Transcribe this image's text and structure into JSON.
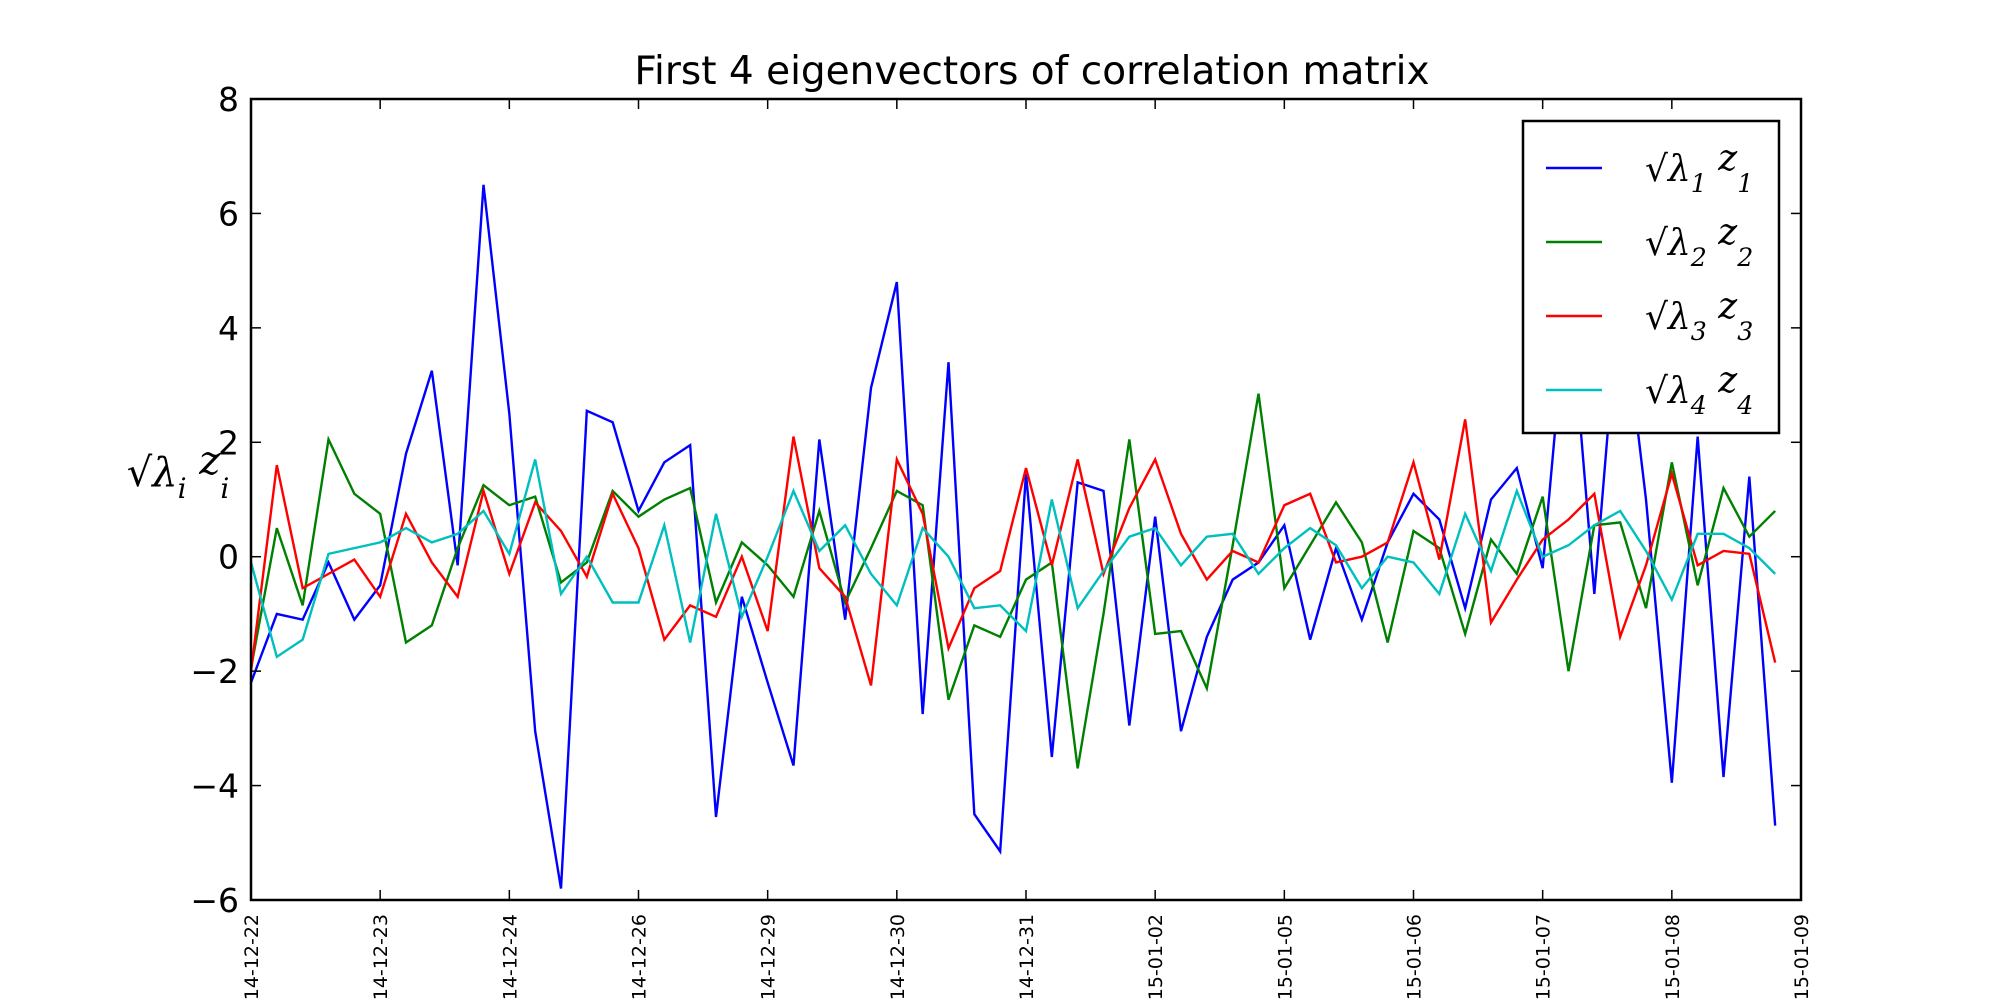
{
  "chart_data": {
    "type": "line",
    "title": "First 4 eigenvectors of correlation matrix",
    "xlabel": "",
    "ylabel": "√λi zi",
    "ylim": [
      -6,
      8
    ],
    "yticks": [
      -6,
      -4,
      -2,
      0,
      2,
      4,
      6,
      8
    ],
    "ytick_labels": [
      "−6",
      "−4",
      "−2",
      "0",
      "2",
      "4",
      "6",
      "8"
    ],
    "xtick_labels": [
      "2014-12-22",
      "2014-12-23",
      "2014-12-24",
      "2014-12-26",
      "2014-12-29",
      "2014-12-30",
      "2014-12-31",
      "2015-01-02",
      "2015-01-05",
      "2015-01-06",
      "2015-01-07",
      "2015-01-08",
      "2015-01-09"
    ],
    "points_per_tick": 5,
    "grid": false,
    "legend_position": "top-right",
    "series": [
      {
        "name": "√λ1 z1",
        "color": "#0000ff",
        "values": [
          -2.2,
          -1.0,
          -1.1,
          -0.1,
          -1.1,
          -0.5,
          1.8,
          3.25,
          -0.15,
          6.5,
          2.5,
          -3.05,
          -5.8,
          2.55,
          2.35,
          0.8,
          1.65,
          1.95,
          -4.55,
          -0.7,
          -2.2,
          -3.65,
          2.05,
          -1.1,
          2.95,
          4.8,
          -2.75,
          3.4,
          -4.5,
          -5.15,
          1.45,
          -3.5,
          1.3,
          1.15,
          -2.95,
          0.7,
          -3.05,
          -1.4,
          -0.4,
          -0.1,
          0.55,
          -1.45,
          0.15,
          -1.1,
          0.25,
          1.1,
          0.65,
          -0.9,
          1.0,
          1.55,
          -0.2,
          4.8,
          -0.65,
          4.8,
          1.0,
          -3.95,
          2.1,
          -3.85,
          1.4,
          -4.7
        ]
      },
      {
        "name": "√λ2 z2",
        "color": "#008000",
        "values": [
          -1.95,
          0.5,
          -0.85,
          2.05,
          1.1,
          0.75,
          -1.5,
          -1.2,
          0.15,
          1.25,
          0.9,
          1.05,
          -0.45,
          -0.1,
          1.15,
          0.7,
          1.0,
          1.2,
          -0.8,
          0.25,
          -0.15,
          -0.7,
          0.8,
          -0.8,
          0.15,
          1.15,
          0.9,
          -2.5,
          -1.2,
          -1.4,
          -0.4,
          -0.1,
          -3.7,
          -1.0,
          2.05,
          -1.35,
          -1.3,
          -2.3,
          0.2,
          2.85,
          -0.55,
          0.2,
          0.95,
          0.25,
          -1.5,
          0.45,
          0.15,
          -1.35,
          0.3,
          -0.3,
          1.05,
          -2.0,
          0.55,
          0.6,
          -0.9,
          1.65,
          -0.5,
          1.2,
          0.35,
          0.8
        ]
      },
      {
        "name": "√λ3 z3",
        "color": "#ff0000",
        "values": [
          -2.0,
          1.6,
          -0.55,
          -0.3,
          -0.05,
          -0.7,
          0.75,
          -0.1,
          -0.7,
          1.15,
          -0.3,
          0.95,
          0.45,
          -0.35,
          1.1,
          0.15,
          -1.45,
          -0.85,
          -1.05,
          0.0,
          -1.3,
          2.1,
          -0.2,
          -0.7,
          -2.25,
          1.7,
          0.75,
          -1.6,
          -0.55,
          -0.25,
          1.55,
          -0.15,
          1.7,
          -0.3,
          0.85,
          1.7,
          0.4,
          -0.4,
          0.1,
          -0.1,
          0.9,
          1.1,
          -0.1,
          0.0,
          0.25,
          1.65,
          -0.05,
          2.4,
          -1.15,
          -0.4,
          0.3,
          0.65,
          1.1,
          -1.4,
          -0.15,
          1.45,
          -0.15,
          0.1,
          0.05,
          -1.85
        ]
      },
      {
        "name": "√λ4 z4",
        "color": "#00bfbf",
        "values": [
          -0.1,
          -1.75,
          -1.45,
          0.05,
          0.15,
          0.25,
          0.5,
          0.25,
          0.4,
          0.8,
          0.05,
          1.7,
          -0.65,
          0.0,
          -0.8,
          -0.8,
          0.55,
          -1.5,
          0.75,
          -1.05,
          0.0,
          1.15,
          0.1,
          0.55,
          -0.3,
          -0.85,
          0.5,
          0.0,
          -0.9,
          -0.85,
          -1.3,
          1.0,
          -0.9,
          -0.25,
          0.35,
          0.5,
          -0.15,
          0.35,
          0.4,
          -0.3,
          0.15,
          0.5,
          0.2,
          -0.55,
          0.0,
          -0.1,
          -0.65,
          0.75,
          -0.25,
          1.15,
          0.0,
          0.2,
          0.55,
          0.8,
          0.1,
          -0.75,
          0.4,
          0.4,
          0.15,
          -0.3
        ]
      }
    ]
  }
}
